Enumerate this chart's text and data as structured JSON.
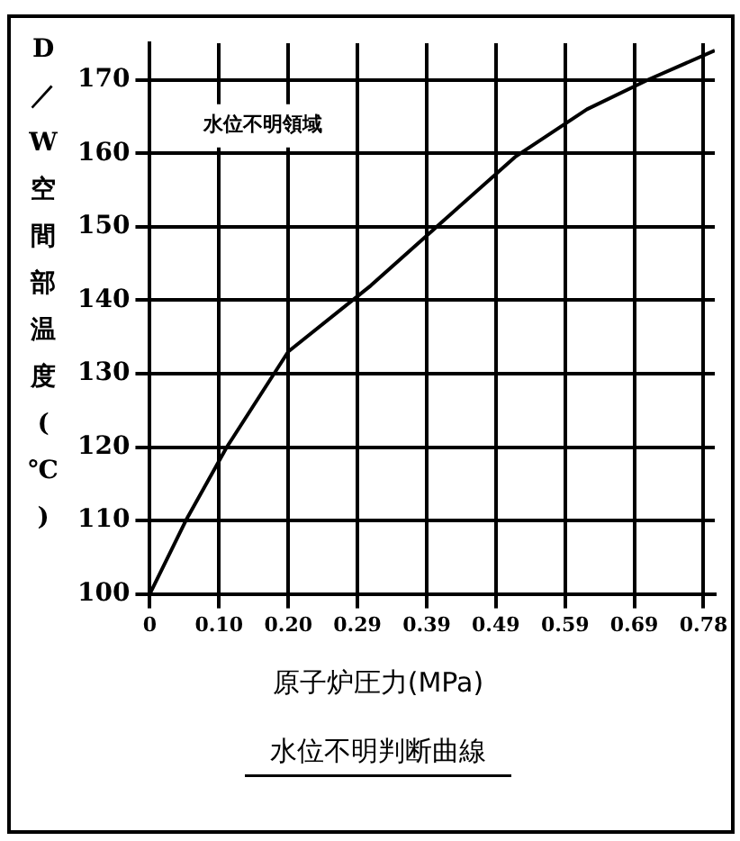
{
  "chart_data": {
    "type": "line",
    "title": "水位不明判断曲線",
    "xlabel": "原子炉圧力(MPa)",
    "ylabel": "D／W空間部温度(℃)",
    "annotations": [
      "水位不明領域"
    ],
    "x": [
      0,
      0.051,
      0.109,
      0.196,
      0.313,
      0.412,
      0.517,
      0.619,
      0.705,
      0.8
    ],
    "series": [
      {
        "color": "#000000",
        "values": [
          100,
          110,
          120,
          133,
          142,
          150.5,
          159.5,
          166,
          170,
          174
        ]
      }
    ],
    "xlim": [
      0,
      0.8
    ],
    "ylim": [
      100,
      175
    ],
    "xticks": [
      0,
      {
        "value": 0.098,
        "label": "0.10"
      },
      {
        "value": 0.196,
        "label": "0.20"
      },
      {
        "value": 0.294,
        "label": "0.29"
      },
      {
        "value": 0.392,
        "label": "0.39"
      },
      {
        "value": 0.49,
        "label": "0.49"
      },
      {
        "value": 0.588,
        "label": "0.59"
      },
      {
        "value": 0.686,
        "label": "0.69"
      },
      {
        "value": 0.784,
        "label": "0.78"
      }
    ],
    "yticks": [
      100,
      110,
      120,
      130,
      140,
      150,
      160,
      170
    ],
    "grid": true,
    "legend": false,
    "marker": "none",
    "line_style": "solid"
  }
}
